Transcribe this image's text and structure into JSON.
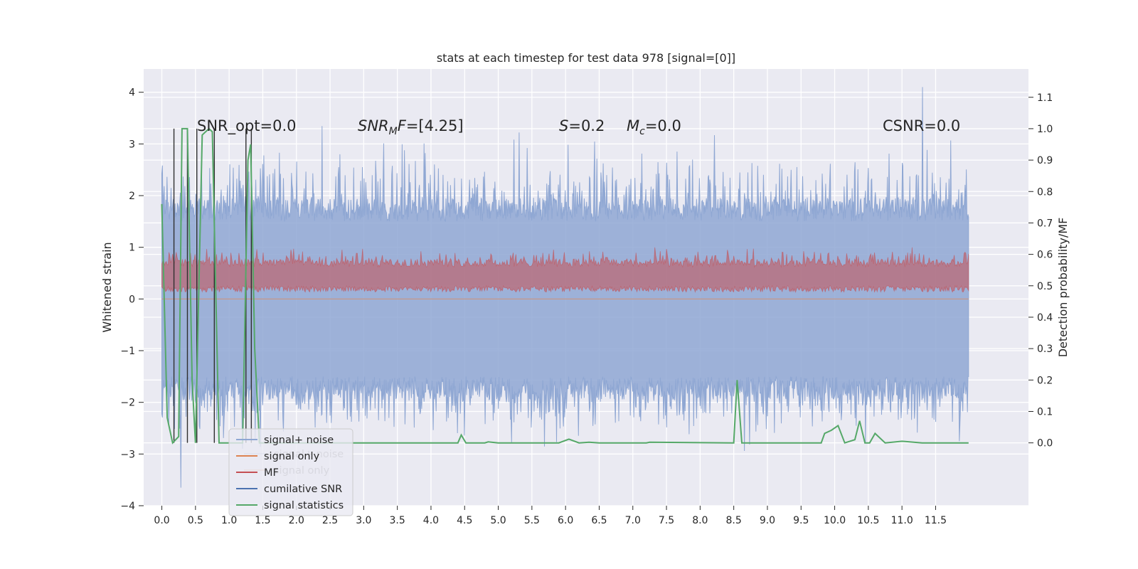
{
  "chart_data": {
    "type": "line",
    "title": "stats at each timestep for test data 978 [signal=[0]]",
    "ylabel_left": "Whitened strain",
    "ylabel_right": "Detection probability/MF",
    "x_range": [
      -0.27,
      12.88
    ],
    "y_left_range": [
      -4.0,
      4.45
    ],
    "y_right_range": [
      -0.2,
      1.19
    ],
    "x_ticks": [
      "0.0",
      "0.5",
      "1.0",
      "1.5",
      "2.0",
      "2.5",
      "3.0",
      "3.5",
      "4.0",
      "4.5",
      "5.0",
      "5.5",
      "6.0",
      "6.5",
      "7.0",
      "7.5",
      "8.0",
      "8.5",
      "9.0",
      "9.5",
      "10.0",
      "10.5",
      "11.0",
      "11.5"
    ],
    "y_left_ticks": [
      "4",
      "3",
      "2",
      "1",
      "0",
      "−1",
      "−2",
      "−3",
      "−4"
    ],
    "y_right_ticks": [
      "1.1",
      "1.0",
      "0.9",
      "0.8",
      "0.7",
      "0.6",
      "0.5",
      "0.4",
      "0.3",
      "0.2",
      "0.1",
      "0.0"
    ],
    "annotations": {
      "snr_opt": "SNR_opt=0.0",
      "snr_mf_sym": "SNR",
      "snr_mf_sub": "M",
      "snr_mf_rest": "F=[4.25]",
      "s_sym": "S",
      "s_rest": "=0.2",
      "mc_sym": "M",
      "mc_sub": "c",
      "mc_rest": "=0.0",
      "csnr": "CSNR=0.0"
    },
    "series": [
      {
        "name": "signal+ noise",
        "color": "#8fa7d3",
        "axis": "left",
        "x_range": [
          0.0,
          11.99
        ],
        "amplitude_range": [
          -2.7,
          2.7
        ],
        "peak_max": 4.1,
        "peak_min": -3.65
      },
      {
        "name": "signal only",
        "color": "#dd8452",
        "axis": "left",
        "values": "flat at 0.0"
      },
      {
        "name": "MF",
        "color": "#c44e52",
        "axis": "right",
        "x_range": [
          0.0,
          11.99
        ],
        "amplitude_range": [
          0.47,
          0.63
        ]
      },
      {
        "name": "cumilative SNR",
        "color": "#4c72b0",
        "axis": "right",
        "values": "flat at 0.0"
      },
      {
        "name": "signal statistics",
        "color": "#55a868",
        "axis": "right",
        "points": [
          [
            0.0,
            0.76
          ],
          [
            0.08,
            0.08
          ],
          [
            0.16,
            0.0
          ],
          [
            0.25,
            0.02
          ],
          [
            0.3,
            1.0
          ],
          [
            0.38,
            1.0
          ],
          [
            0.45,
            0.2
          ],
          [
            0.5,
            0.0
          ],
          [
            0.6,
            0.98
          ],
          [
            0.7,
            1.0
          ],
          [
            0.75,
            0.99
          ],
          [
            0.85,
            0.0
          ],
          [
            1.0,
            0.0
          ],
          [
            1.2,
            0.0
          ],
          [
            1.28,
            0.9
          ],
          [
            1.32,
            0.95
          ],
          [
            1.38,
            0.3
          ],
          [
            1.45,
            0.0
          ],
          [
            2.0,
            0.0
          ],
          [
            3.0,
            0.0
          ],
          [
            4.2,
            0.0
          ],
          [
            4.4,
            0.0
          ],
          [
            4.45,
            0.025
          ],
          [
            4.52,
            0.0
          ],
          [
            4.8,
            0.0
          ],
          [
            4.85,
            0.003
          ],
          [
            5.0,
            0.0
          ],
          [
            5.9,
            0.0
          ],
          [
            6.05,
            0.012
          ],
          [
            6.2,
            0.0
          ],
          [
            6.35,
            0.002
          ],
          [
            6.5,
            0.0
          ],
          [
            7.2,
            0.0
          ],
          [
            7.25,
            0.002
          ],
          [
            8.5,
            0.0
          ],
          [
            8.55,
            0.2
          ],
          [
            8.62,
            0.0
          ],
          [
            9.0,
            0.0
          ],
          [
            9.8,
            0.0
          ],
          [
            9.85,
            0.03
          ],
          [
            9.95,
            0.04
          ],
          [
            10.05,
            0.055
          ],
          [
            10.15,
            0.0
          ],
          [
            10.3,
            0.01
          ],
          [
            10.37,
            0.07
          ],
          [
            10.45,
            0.0
          ],
          [
            10.52,
            0.0
          ],
          [
            10.6,
            0.03
          ],
          [
            10.75,
            0.0
          ],
          [
            11.0,
            0.005
          ],
          [
            11.3,
            0.0
          ],
          [
            11.6,
            0.0
          ],
          [
            11.8,
            0.0
          ],
          [
            11.99,
            0.0
          ]
        ]
      }
    ],
    "vertical_lines": [
      0.18,
      0.38,
      0.52,
      0.78,
      1.25,
      1.33
    ],
    "legend_placement": "lower-left",
    "legend": [
      "signal+ noise",
      "signal only",
      "MF",
      "cumilative SNR",
      "signal statistics"
    ],
    "legend_ghost": [
      "signal+ noise",
      "signal only"
    ],
    "grid": true
  }
}
